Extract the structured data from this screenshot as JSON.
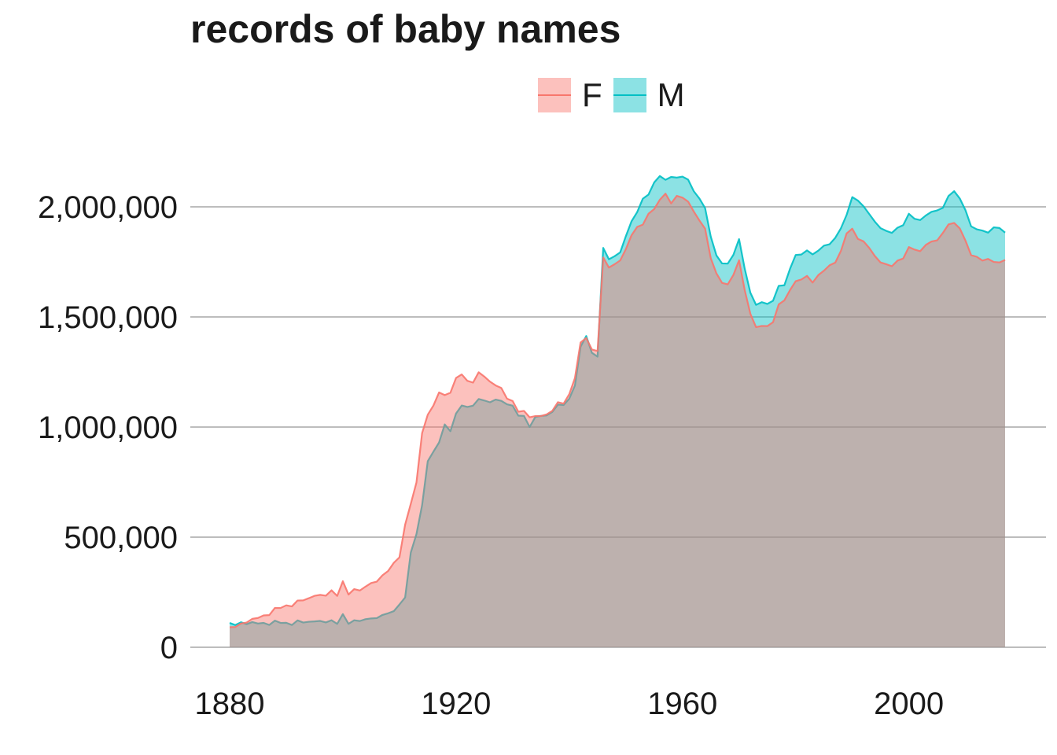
{
  "chart_data": {
    "type": "area",
    "title": "records of baby names",
    "xlabel": "",
    "ylabel": "",
    "xlim": [
      1880,
      2017
    ],
    "ylim": [
      0,
      2150000
    ],
    "x_ticks": [
      "1880",
      "1920",
      "1960",
      "2000"
    ],
    "x_tick_values": [
      1880,
      1920,
      1960,
      2000
    ],
    "y_ticks": [
      "0",
      "500,000",
      "1,000,000",
      "1,500,000",
      "2,000,000"
    ],
    "y_tick_values": [
      0,
      500000,
      1000000,
      1500000,
      2000000
    ],
    "grid": "horizontal",
    "legend_placement": "top",
    "overlap": "identity",
    "x": [
      1880,
      1881,
      1882,
      1883,
      1884,
      1885,
      1886,
      1887,
      1888,
      1889,
      1890,
      1891,
      1892,
      1893,
      1894,
      1895,
      1896,
      1897,
      1898,
      1899,
      1900,
      1901,
      1902,
      1903,
      1904,
      1905,
      1906,
      1907,
      1908,
      1909,
      1910,
      1911,
      1912,
      1913,
      1914,
      1915,
      1916,
      1917,
      1918,
      1919,
      1920,
      1921,
      1922,
      1923,
      1924,
      1925,
      1926,
      1927,
      1928,
      1929,
      1930,
      1931,
      1932,
      1933,
      1934,
      1935,
      1936,
      1937,
      1938,
      1939,
      1940,
      1941,
      1942,
      1943,
      1944,
      1945,
      1946,
      1947,
      1948,
      1949,
      1950,
      1951,
      1952,
      1953,
      1954,
      1955,
      1956,
      1957,
      1958,
      1959,
      1960,
      1961,
      1962,
      1963,
      1964,
      1965,
      1966,
      1967,
      1968,
      1969,
      1970,
      1971,
      1972,
      1973,
      1974,
      1975,
      1976,
      1977,
      1978,
      1979,
      1980,
      1981,
      1982,
      1983,
      1984,
      1985,
      1986,
      1987,
      1988,
      1989,
      1990,
      1991,
      1992,
      1993,
      1994,
      1995,
      1996,
      1997,
      1998,
      1999,
      2000,
      2001,
      2002,
      2003,
      2004,
      2005,
      2006,
      2007,
      2008,
      2009,
      2010,
      2011,
      2012,
      2013,
      2014,
      2015,
      2016,
      2017
    ],
    "series": [
      {
        "name": "F",
        "color": "#F8766D",
        "values": [
          90994,
          91954,
          107850,
          112321,
          129022,
          133056,
          144535,
          145982,
          178627,
          178366,
          190377,
          185482,
          212346,
          212906,
          222922,
          233630,
          237920,
          234202,
          258770,
          233023,
          299828,
          239351,
          264079,
          257597,
          275375,
          291641,
          298100,
          326758,
          346200,
          383548,
          408500,
          556400,
          651200,
          747900,
          972500,
          1055900,
          1097500,
          1157300,
          1145100,
          1155700,
          1223000,
          1239000,
          1209900,
          1201800,
          1248800,
          1229200,
          1206200,
          1189000,
          1177300,
          1128900,
          1118300,
          1069600,
          1073500,
          1044300,
          1049900,
          1050300,
          1057200,
          1073500,
          1112900,
          1106400,
          1149300,
          1222300,
          1384000,
          1404700,
          1352200,
          1345500,
          1770400,
          1724300,
          1739300,
          1756800,
          1807900,
          1871100,
          1908800,
          1919300,
          1968900,
          1989700,
          2032200,
          2060000,
          2015600,
          2049900,
          2041900,
          2023800,
          1978900,
          1938000,
          1900900,
          1767000,
          1697900,
          1654800,
          1647800,
          1690800,
          1757700,
          1621800,
          1514300,
          1453700,
          1459200,
          1458500,
          1476200,
          1556900,
          1575300,
          1621800,
          1662400,
          1670100,
          1686600,
          1656300,
          1690100,
          1710300,
          1734800,
          1746900,
          1800300,
          1879200,
          1900900,
          1854300,
          1843100,
          1813400,
          1776300,
          1747400,
          1739500,
          1730400,
          1756100,
          1765600,
          1817500,
          1806000,
          1798600,
          1827300,
          1842800,
          1847800,
          1881400,
          1920200,
          1926900,
          1902000,
          1846600,
          1780600,
          1773200,
          1756000,
          1763500,
          1749800,
          1747500,
          1758800
        ]
      },
      {
        "name": "M",
        "color": "#00BFC4",
        "values": [
          110490,
          100738,
          113686,
          104625,
          114442,
          107799,
          110785,
          101412,
          120851,
          110584,
          111025,
          101196,
          122037,
          112317,
          115772,
          117398,
          119570,
          112758,
          122693,
          106212,
          150499,
          106478,
          122660,
          119231,
          127375,
          130945,
          132398,
          146823,
          154340,
          163983,
          194209,
          225965,
          429926,
          513584,
          645243,
          844890,
          888000,
          930000,
          1011900,
          981300,
          1061700,
          1097900,
          1091200,
          1097200,
          1127500,
          1120500,
          1112500,
          1124800,
          1118800,
          1103500,
          1096900,
          1051900,
          1050600,
          1000300,
          1045700,
          1050700,
          1052700,
          1068400,
          1102000,
          1100000,
          1128800,
          1188400,
          1364800,
          1413500,
          1337300,
          1319800,
          1813300,
          1761900,
          1775600,
          1793400,
          1866800,
          1934400,
          1976300,
          2037200,
          2055700,
          2110600,
          2140000,
          2122700,
          2135700,
          2132700,
          2137300,
          2123600,
          2071000,
          2037800,
          1994500,
          1865000,
          1779500,
          1743000,
          1742200,
          1782200,
          1853600,
          1719000,
          1610000,
          1555000,
          1567100,
          1559000,
          1573600,
          1641400,
          1643800,
          1718400,
          1781200,
          1783500,
          1802300,
          1784200,
          1801100,
          1823700,
          1830300,
          1859500,
          1903100,
          1963400,
          2044400,
          2028400,
          2002200,
          1967500,
          1932400,
          1903100,
          1890900,
          1881800,
          1905500,
          1916700,
          1968700,
          1945600,
          1939900,
          1961000,
          1977300,
          1983900,
          1995400,
          2049400,
          2071100,
          2037900,
          1984900,
          1911400,
          1898000,
          1892100,
          1882900,
          1907000,
          1904000,
          1883100
        ]
      }
    ]
  }
}
